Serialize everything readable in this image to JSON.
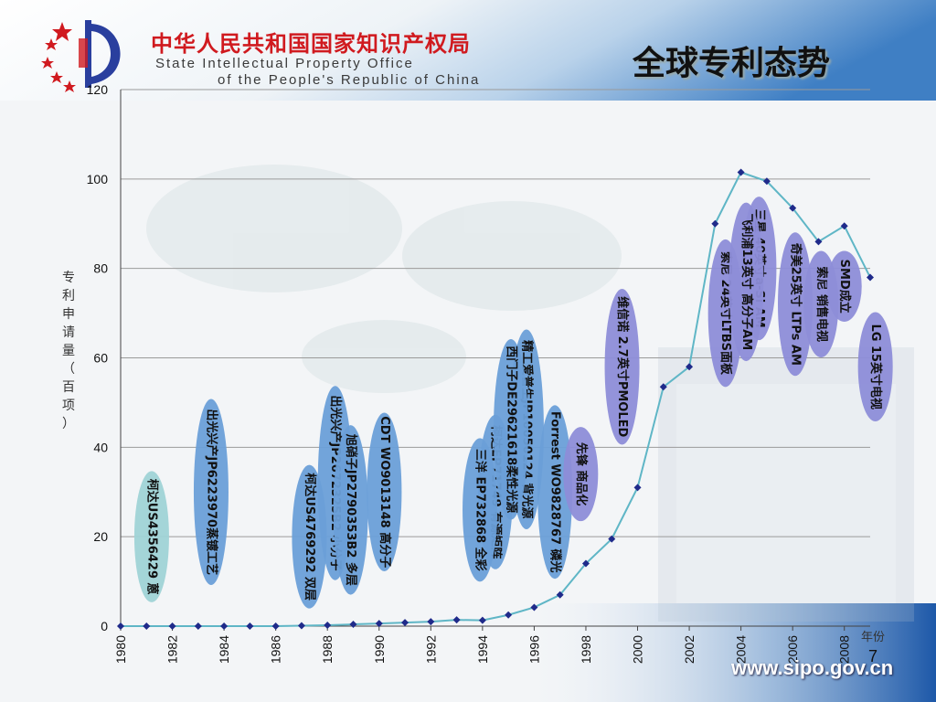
{
  "header": {
    "org_name_cn": "中华人民共和国国家知识产权局",
    "org_name_en_line1": "State Intellectual Property Office",
    "org_name_en_line2": "of the People's Republic of China"
  },
  "slide_title": "全球专利态势",
  "page_number": "7",
  "website": "www.sipo.gov.cn",
  "colors": {
    "line": "#5fb6c6",
    "marker": "#1f2a8a",
    "bubble": "#8d8dd8",
    "bubble_alt": "#6a9fd8",
    "bubble_teal": "#9fd3d6",
    "title_red": "#d01a1f"
  },
  "chart_data": {
    "type": "line",
    "ylabel": "专利申请量（百项）",
    "xlabel": "年份",
    "ylim": [
      0,
      120
    ],
    "xlim": [
      1980,
      2009
    ],
    "y_ticks": [
      "0",
      "20",
      "40",
      "60",
      "80",
      "100",
      "120"
    ],
    "x_ticks": [
      "1980",
      "1982",
      "1984",
      "1986",
      "1988",
      "1990",
      "1992",
      "1994",
      "1996",
      "1998",
      "2000",
      "2002",
      "2004",
      "2006",
      "2008"
    ],
    "grid": true,
    "series": [
      {
        "x": [
          1980,
          1981,
          1982,
          1983,
          1984,
          1985,
          1986,
          1987,
          1988,
          1989,
          1990,
          1991,
          1992,
          1993,
          1994,
          1995,
          1996,
          1997,
          1998,
          1999,
          2000,
          2001,
          2002,
          2003,
          2004,
          2005,
          2006,
          2007,
          2008,
          2009
        ],
        "values": [
          0,
          0,
          0,
          0,
          0,
          0,
          0,
          0.1,
          0.2,
          0.4,
          0.6,
          0.8,
          1.0,
          1.4,
          1.3,
          2.5,
          4.2,
          7.0,
          14,
          19.5,
          31,
          53.5,
          58,
          90,
          101.5,
          99.5,
          93.5,
          86,
          89.5,
          78
        ]
      }
    ],
    "annotations": [
      {
        "text": "柯达US4356429 蒽",
        "color": "teal",
        "x": 1981.2,
        "y": 20
      },
      {
        "text": "出光兴产JP6223970蒸镀工艺",
        "color": "blue",
        "x": 1983.5,
        "y": 30
      },
      {
        "text": "柯达US4769292 双层",
        "color": "blue",
        "x": 1987.3,
        "y": 20
      },
      {
        "text": "出光兴产JP2672325B2 小分子",
        "color": "blue",
        "x": 1988.3,
        "y": 32
      },
      {
        "text": "旭硝子JP2790353B2 多层",
        "color": "blue",
        "x": 1988.9,
        "y": 26
      },
      {
        "text": "CDT WO9013148 高分子",
        "color": "blue",
        "x": 1990.2,
        "y": 30
      },
      {
        "text": "柯达EP71749 有源矩阵",
        "color": "blue",
        "x": 1994.5,
        "y": 30
      },
      {
        "text": "三洋 EP732868 全彩",
        "color": "blue",
        "x": 1993.9,
        "y": 26
      },
      {
        "text": "精工爱普生JP10050124 背光源",
        "color": "blue",
        "x": 1995.7,
        "y": 44
      },
      {
        "text": "西门子DE29621618柔性光源",
        "color": "blue",
        "x": 1995.1,
        "y": 44
      },
      {
        "text": "Forrest WO9828767 磷光",
        "color": "blue",
        "x": 1996.8,
        "y": 30
      },
      {
        "text": "先锋 商品化",
        "color": "purple",
        "x": 1997.8,
        "y": 34
      },
      {
        "text": "维信诺 2.7英寸PMOLED",
        "color": "purple",
        "x": 1999.4,
        "y": 58
      },
      {
        "text": "索尼 24英寸LTBS面板",
        "color": "purple",
        "x": 2003.4,
        "y": 70
      },
      {
        "text": "三星 40英寸a-Si AM",
        "color": "purple",
        "x": 2004.7,
        "y": 80
      },
      {
        "text": "飞利浦13英寸 高分子AM",
        "color": "purple",
        "x": 2004.2,
        "y": 77
      },
      {
        "text": "奇美25英寸 LTPs AM",
        "color": "purple",
        "x": 2006.1,
        "y": 72
      },
      {
        "text": "索尼 销售电视",
        "color": "purple",
        "x": 2007.1,
        "y": 72
      },
      {
        "text": "SMD成立",
        "color": "purple",
        "x": 2008.0,
        "y": 76
      },
      {
        "text": "LG 15英寸电视",
        "color": "purple",
        "x": 2009.2,
        "y": 58
      }
    ]
  }
}
